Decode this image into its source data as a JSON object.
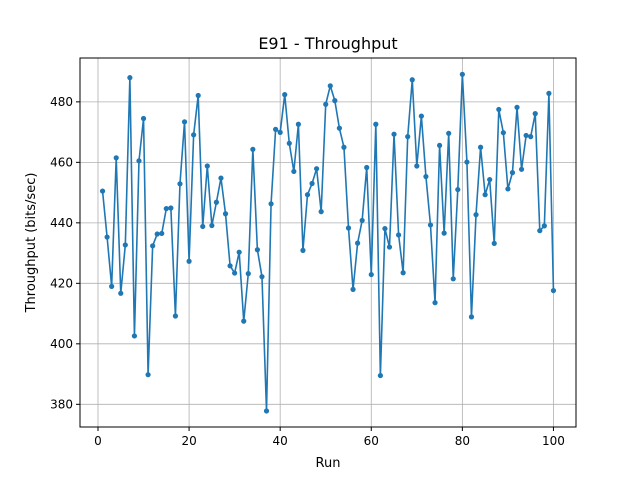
{
  "chart_data": {
    "type": "line",
    "title": "E91 - Throughput",
    "xlabel": "Run",
    "ylabel": "Throughput (bits/sec)",
    "xlim": [
      -3.95,
      104.95
    ],
    "ylim": [
      372.5,
      494.5
    ],
    "xticks": [
      0,
      20,
      40,
      60,
      80,
      100
    ],
    "yticks": [
      380,
      400,
      420,
      440,
      460,
      480
    ],
    "grid": true,
    "color": "#1f77b4",
    "x": [
      1,
      2,
      3,
      4,
      5,
      6,
      7,
      8,
      9,
      10,
      11,
      12,
      13,
      14,
      15,
      16,
      17,
      18,
      19,
      20,
      21,
      22,
      23,
      24,
      25,
      26,
      27,
      28,
      29,
      30,
      31,
      32,
      33,
      34,
      35,
      36,
      37,
      38,
      39,
      40,
      41,
      42,
      43,
      44,
      45,
      46,
      47,
      48,
      49,
      50,
      51,
      52,
      53,
      54,
      55,
      56,
      57,
      58,
      59,
      60,
      61,
      62,
      63,
      64,
      65,
      66,
      67,
      68,
      69,
      70,
      71,
      72,
      73,
      74,
      75,
      76,
      77,
      78,
      79,
      80,
      81,
      82,
      83,
      84,
      85,
      86,
      87,
      88,
      89,
      90,
      91,
      92,
      93,
      94,
      95,
      96,
      97,
      98,
      99,
      100
    ],
    "y": [
      450.5,
      435.3,
      419.0,
      461.5,
      416.7,
      432.7,
      488.0,
      402.6,
      460.5,
      474.5,
      389.8,
      432.4,
      436.3,
      436.5,
      444.7,
      444.9,
      409.2,
      452.9,
      473.4,
      427.3,
      469.1,
      482.1,
      438.8,
      458.8,
      439.1,
      446.8,
      454.8,
      443.0,
      425.8,
      423.4,
      430.3,
      407.5,
      423.2,
      464.3,
      431.1,
      422.2,
      377.8,
      446.3,
      470.9,
      469.9,
      482.4,
      466.3,
      457.0,
      472.6,
      430.9,
      449.3,
      453.0,
      457.9,
      443.7,
      479.2,
      485.3,
      480.4,
      471.3,
      465.0,
      438.3,
      418.0,
      433.3,
      440.8,
      458.3,
      422.9,
      472.6,
      389.5,
      438.1,
      432.0,
      469.3,
      436.0,
      423.5,
      468.5,
      487.3,
      458.8,
      475.3,
      455.3,
      439.3,
      413.6,
      465.6,
      436.6,
      469.6,
      421.5,
      451.0,
      489.1,
      460.1,
      408.9,
      442.7,
      465.0,
      449.3,
      454.3,
      433.2,
      477.5,
      469.8,
      451.2,
      456.6,
      478.2,
      457.7,
      468.9,
      468.5,
      476.1,
      437.4,
      439.0,
      482.8,
      417.6
    ]
  }
}
